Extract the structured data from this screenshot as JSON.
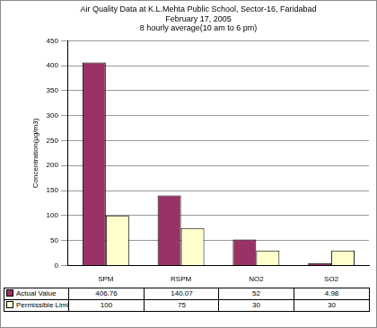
{
  "chart_data": {
    "type": "bar",
    "title": [
      "Air Quality Data at K.L.Mehta Public School, Sector-16, Faridabad",
      "February 17, 2005",
      "8 hourly average(10 am to 6 pm)"
    ],
    "y_label": "Concentration(µg/m3)",
    "categories": [
      "SPM",
      "RSPM",
      "NO2",
      "SO2"
    ],
    "series": [
      {
        "name": "Actual Value",
        "color": "#993366",
        "values": [
          406.76,
          140.07,
          52,
          4.98
        ]
      },
      {
        "name": "Permissible Limit",
        "color": "#ffffcc",
        "values": [
          100,
          75,
          30,
          30
        ]
      }
    ],
    "ylim": [
      0,
      450
    ],
    "yticks": [
      0,
      50,
      100,
      150,
      200,
      250,
      300,
      350,
      400,
      450
    ],
    "grid": true
  }
}
